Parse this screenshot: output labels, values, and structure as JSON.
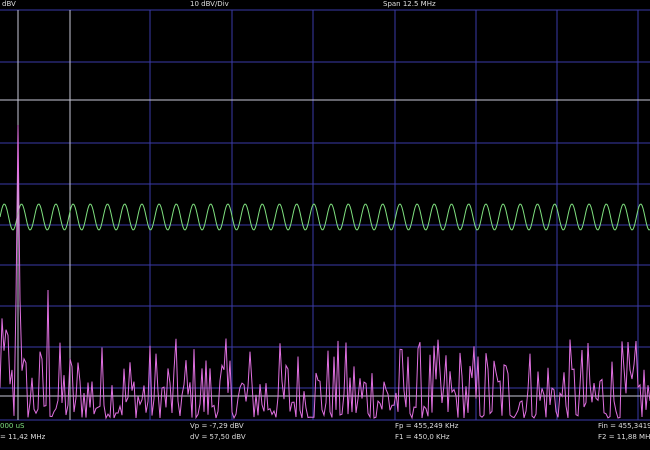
{
  "header": {
    "left": "dBV",
    "center": "10 dBV/Div",
    "right": "Span 12.5 MHz"
  },
  "footer": {
    "row1": [
      "000 uS",
      "Vp = -7,29 dBV",
      "Fp = 455,249 KHz",
      "Fin = 455,3419 K"
    ],
    "row2": [
      "= 11,42 MHz",
      "dV = 57,50 dBV",
      "F1 = 450,0 KHz",
      "F2 = 11,88 MHz"
    ]
  }
}
